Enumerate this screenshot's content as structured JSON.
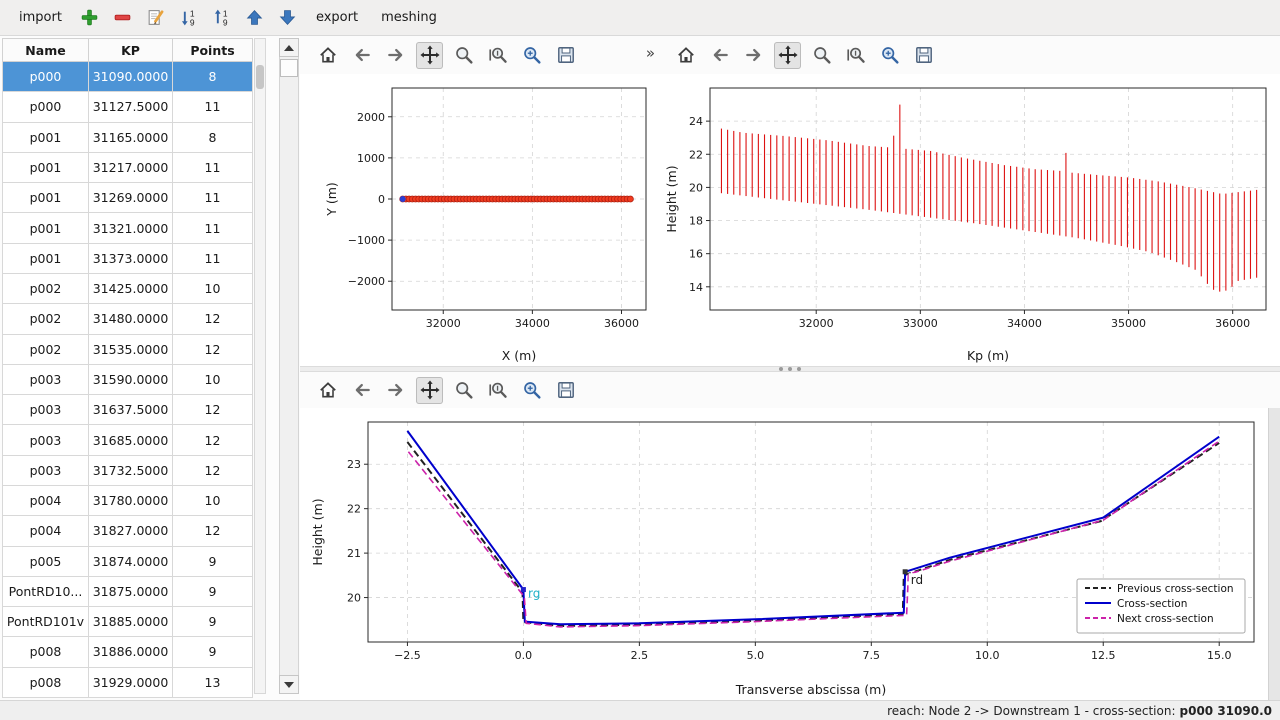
{
  "topbar": {
    "import_label": "import",
    "export_label": "export",
    "meshing_label": "meshing"
  },
  "table": {
    "headers": [
      "Name",
      "KP",
      "Points"
    ],
    "selected_row_index": 0,
    "rows": [
      {
        "name": "p000",
        "kp": "31090.0000",
        "points": "8"
      },
      {
        "name": "p000",
        "kp": "31127.5000",
        "points": "11"
      },
      {
        "name": "p001",
        "kp": "31165.0000",
        "points": "8"
      },
      {
        "name": "p001",
        "kp": "31217.0000",
        "points": "11"
      },
      {
        "name": "p001",
        "kp": "31269.0000",
        "points": "11"
      },
      {
        "name": "p001",
        "kp": "31321.0000",
        "points": "11"
      },
      {
        "name": "p001",
        "kp": "31373.0000",
        "points": "11"
      },
      {
        "name": "p002",
        "kp": "31425.0000",
        "points": "10"
      },
      {
        "name": "p002",
        "kp": "31480.0000",
        "points": "12"
      },
      {
        "name": "p002",
        "kp": "31535.0000",
        "points": "12"
      },
      {
        "name": "p003",
        "kp": "31590.0000",
        "points": "10"
      },
      {
        "name": "p003",
        "kp": "31637.5000",
        "points": "12"
      },
      {
        "name": "p003",
        "kp": "31685.0000",
        "points": "12"
      },
      {
        "name": "p003",
        "kp": "31732.5000",
        "points": "12"
      },
      {
        "name": "p004",
        "kp": "31780.0000",
        "points": "10"
      },
      {
        "name": "p004",
        "kp": "31827.0000",
        "points": "12"
      },
      {
        "name": "p005",
        "kp": "31874.0000",
        "points": "9"
      },
      {
        "name": "PontRD10...",
        "kp": "31875.0000",
        "points": "9"
      },
      {
        "name": "PontRD101v",
        "kp": "31885.0000",
        "points": "9"
      },
      {
        "name": "p008",
        "kp": "31886.0000",
        "points": "9"
      },
      {
        "name": "p008",
        "kp": "31929.0000",
        "points": "13"
      }
    ]
  },
  "mpl_toolbar": {
    "buttons": [
      "home",
      "back",
      "forward",
      "pan",
      "zoom",
      "subplots",
      "customize",
      "save"
    ],
    "overflow_label": "»"
  },
  "chart_data": [
    {
      "id": "plot-plan",
      "type": "scatter",
      "xlabel": "X (m)",
      "ylabel": "Y (m)",
      "xlim": [
        30850,
        36550
      ],
      "ylim": [
        -2700,
        2700
      ],
      "xticks": [
        [
          32000,
          "32000"
        ],
        [
          34000,
          "34000"
        ],
        [
          36000,
          "36000"
        ]
      ],
      "yticks": [
        [
          2000,
          "2000"
        ],
        [
          1000,
          "1000"
        ],
        [
          0,
          "0"
        ],
        [
          -1000,
          "−1000"
        ],
        [
          -2000,
          "−2000"
        ]
      ],
      "grid": true,
      "series": [
        {
          "name": "reach-axis-points",
          "type": "scatter-range",
          "start": 31090,
          "end": 36200,
          "count": 72,
          "y": 0,
          "color": "#f03b20",
          "edge": "#b02010",
          "r": 3
        },
        {
          "name": "first-point",
          "type": "scatter",
          "points": [
            [
              31090,
              0
            ]
          ],
          "color": "#2b3fd4",
          "r": 3
        }
      ]
    },
    {
      "id": "plot-long",
      "type": "vlines",
      "xlabel": "Kp (m)",
      "ylabel": "Height (m)",
      "xlim": [
        30980,
        36320
      ],
      "ylim": [
        12.6,
        26.0
      ],
      "xticks": [
        [
          32000,
          "32000"
        ],
        [
          33000,
          "33000"
        ],
        [
          34000,
          "34000"
        ],
        [
          35000,
          "35000"
        ],
        [
          36000,
          "36000"
        ]
      ],
      "yticks": [
        [
          14,
          "14"
        ],
        [
          16,
          "16"
        ],
        [
          18,
          "18"
        ],
        [
          20,
          "20"
        ],
        [
          22,
          "22"
        ],
        [
          24,
          "24"
        ]
      ],
      "grid": true,
      "series": [
        {
          "name": "cross-section-extents",
          "type": "vlines",
          "start": 31090,
          "end": 36230,
          "count": 88,
          "color": "#dd1111",
          "width": 1.1,
          "top_envelope": [
            [
              31090,
              23.55
            ],
            [
              31300,
              23.3
            ],
            [
              31700,
              23.1
            ],
            [
              32100,
              22.85
            ],
            [
              32500,
              22.5
            ],
            [
              32740,
              22.4
            ],
            [
              32755,
              24.95
            ],
            [
              32805,
              25.0
            ],
            [
              32820,
              22.35
            ],
            [
              33100,
              22.2
            ],
            [
              33400,
              21.8
            ],
            [
              33800,
              21.35
            ],
            [
              34100,
              21.1
            ],
            [
              34340,
              21.0
            ],
            [
              34355,
              22.05
            ],
            [
              34420,
              22.1
            ],
            [
              34435,
              20.9
            ],
            [
              34700,
              20.75
            ],
            [
              35000,
              20.6
            ],
            [
              35300,
              20.35
            ],
            [
              35600,
              20.0
            ],
            [
              35900,
              19.6
            ],
            [
              36230,
              19.85
            ]
          ],
          "bottom_envelope": [
            [
              31090,
              19.65
            ],
            [
              31500,
              19.35
            ],
            [
              32000,
              19.0
            ],
            [
              32500,
              18.65
            ],
            [
              33000,
              18.25
            ],
            [
              33500,
              17.85
            ],
            [
              34000,
              17.4
            ],
            [
              34500,
              16.95
            ],
            [
              34900,
              16.5
            ],
            [
              35200,
              16.1
            ],
            [
              35500,
              15.4
            ],
            [
              35650,
              15.0
            ],
            [
              35800,
              13.85
            ],
            [
              35880,
              13.7
            ],
            [
              35960,
              13.8
            ],
            [
              36050,
              14.35
            ],
            [
              36230,
              14.55
            ]
          ]
        }
      ]
    },
    {
      "id": "plot-cross",
      "type": "line",
      "xlabel": "Transverse abscissa (m)",
      "ylabel": "Height (m)",
      "xlim": [
        -3.35,
        15.75
      ],
      "ylim": [
        19.0,
        23.95
      ],
      "xticks": [
        [
          -2.5,
          "−2.5"
        ],
        [
          0,
          "0.0"
        ],
        [
          2.5,
          "2.5"
        ],
        [
          5,
          "5.0"
        ],
        [
          7.5,
          "7.5"
        ],
        [
          10,
          "10.0"
        ],
        [
          12.5,
          "12.5"
        ],
        [
          15,
          "15.0"
        ]
      ],
      "yticks": [
        [
          20,
          "20"
        ],
        [
          21,
          "21"
        ],
        [
          22,
          "22"
        ],
        [
          23,
          "23"
        ]
      ],
      "grid": true,
      "series": [
        {
          "name": "Previous cross-section",
          "type": "line",
          "color": "#222222",
          "dash": "7 4",
          "width": 2,
          "points": [
            [
              -2.5,
              23.5
            ],
            [
              -0.02,
              20.12
            ],
            [
              0.0,
              19.45
            ],
            [
              0.8,
              19.36
            ],
            [
              2.5,
              19.39
            ],
            [
              5.0,
              19.48
            ],
            [
              8.18,
              19.63
            ],
            [
              8.2,
              20.5
            ],
            [
              9.2,
              20.85
            ],
            [
              12.45,
              21.72
            ],
            [
              15.0,
              23.48
            ]
          ]
        },
        {
          "name": "Cross-section",
          "type": "line",
          "color": "#0000cc",
          "width": 2,
          "points": [
            [
              -2.5,
              23.75
            ],
            [
              0.0,
              20.18
            ],
            [
              0.03,
              19.46
            ],
            [
              0.8,
              19.4
            ],
            [
              2.5,
              19.42
            ],
            [
              5.0,
              19.51
            ],
            [
              8.2,
              19.66
            ],
            [
              8.23,
              20.58
            ],
            [
              9.2,
              20.9
            ],
            [
              12.5,
              21.8
            ],
            [
              15.0,
              23.62
            ]
          ]
        },
        {
          "name": "Next cross-section",
          "type": "line",
          "color": "#cc22aa",
          "dash": "7 4",
          "width": 1.6,
          "points": [
            [
              -2.48,
              23.28
            ],
            [
              0.02,
              20.02
            ],
            [
              0.06,
              19.42
            ],
            [
              0.8,
              19.34
            ],
            [
              2.5,
              19.37
            ],
            [
              5.0,
              19.46
            ],
            [
              8.26,
              19.6
            ],
            [
              8.3,
              20.52
            ],
            [
              9.2,
              20.82
            ],
            [
              12.5,
              21.74
            ],
            [
              15.0,
              23.52
            ]
          ]
        }
      ],
      "markers": [
        {
          "x": 0,
          "y": 20.18,
          "color": "#2222cc"
        },
        {
          "x": 8.23,
          "y": 20.58,
          "color": "#333333"
        }
      ],
      "annotations": [
        {
          "text": "rg",
          "x": 0.1,
          "y": 20.0,
          "color": "#1fb0c8"
        },
        {
          "text": "rd",
          "x": 8.35,
          "y": 20.3,
          "color": "#1a1a1a",
          "bg": "#ffffff"
        }
      ],
      "legend": {
        "position": "bottom-right",
        "entries": [
          {
            "label": "Previous cross-section",
            "color": "#222222",
            "dash": "5 3"
          },
          {
            "label": "Cross-section",
            "color": "#0000cc"
          },
          {
            "label": "Next cross-section",
            "color": "#cc22aa",
            "dash": "5 3"
          }
        ]
      }
    }
  ],
  "statusbar": {
    "prefix": "reach: Node 2 -> Downstream 1 - cross-section:",
    "value": "p000 31090.0"
  }
}
